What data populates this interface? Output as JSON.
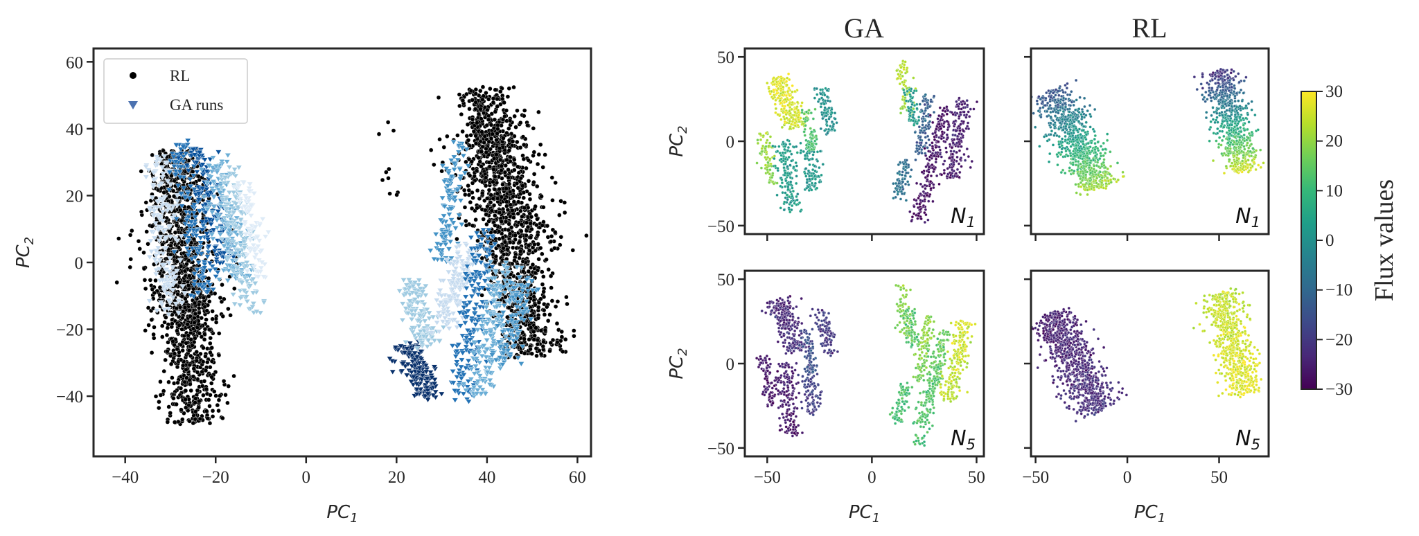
{
  "chart_data": [
    {
      "id": "main",
      "type": "scatter",
      "xlabel": "PC",
      "xlabel_sub": "1",
      "ylabel": "PC",
      "ylabel_sub": "2",
      "xlim": [
        -47,
        63
      ],
      "ylim": [
        -58,
        64
      ],
      "xticks": [
        -40,
        -20,
        0,
        20,
        40,
        60
      ],
      "yticks": [
        -40,
        -20,
        0,
        20,
        40,
        60
      ],
      "legend": {
        "position": "top-left",
        "entries": [
          {
            "label": "RL",
            "marker": "circle",
            "color": "#000000"
          },
          {
            "label": "GA runs",
            "marker": "triangle-down",
            "color": "#4c72b0"
          }
        ]
      },
      "series": [
        {
          "name": "RL",
          "marker": "circle",
          "color": "#000000",
          "clusters": [
            {
              "from": [
                -29,
                34
              ],
              "to": [
                -25,
                -48
              ],
              "width": 6,
              "n": 1100
            },
            {
              "from": [
                -30,
                20
              ],
              "to": [
                -26,
                -20
              ],
              "width": 10,
              "n": 250
            },
            {
              "from": [
                39,
                52
              ],
              "to": [
                50,
                -28
              ],
              "width": 7,
              "n": 1200
            },
            {
              "from": [
                40,
                40
              ],
              "to": [
                50,
                0
              ],
              "width": 12,
              "n": 250
            },
            {
              "from": [
                17,
                45
              ],
              "to": [
                20,
                20
              ],
              "width": 3,
              "n": 10
            }
          ]
        },
        {
          "name": "GA runs",
          "marker": "triangle-down",
          "clusters": [
            {
              "from": [
                -33,
                32
              ],
              "to": [
                -30,
                -15
              ],
              "width": 3,
              "n": 160,
              "color": "#c6dbef"
            },
            {
              "from": [
                -28,
                36
              ],
              "to": [
                -22,
                -10
              ],
              "width": 3,
              "n": 160,
              "color": "#2171b5"
            },
            {
              "from": [
                -24,
                34
              ],
              "to": [
                -18,
                0
              ],
              "width": 3,
              "n": 150,
              "color": "#08519c"
            },
            {
              "from": [
                -20,
                32
              ],
              "to": [
                -15,
                -5
              ],
              "width": 3,
              "n": 150,
              "color": "#6baed6"
            },
            {
              "from": [
                -17,
                28
              ],
              "to": [
                -12,
                -15
              ],
              "width": 3,
              "n": 140,
              "color": "#9ecae1"
            },
            {
              "from": [
                -14,
                25
              ],
              "to": [
                -10,
                -5
              ],
              "width": 2,
              "n": 80,
              "color": "#deebf7"
            },
            {
              "from": [
                22,
                -25
              ],
              "to": [
                28,
                -40
              ],
              "width": 3,
              "n": 180,
              "color": "#08306b"
            },
            {
              "from": [
                23,
                -5
              ],
              "to": [
                27,
                -25
              ],
              "width": 3,
              "n": 150,
              "color": "#9ecae1"
            },
            {
              "from": [
                34,
                35
              ],
              "to": [
                30,
                0
              ],
              "width": 2,
              "n": 120,
              "color": "#4292c6"
            },
            {
              "from": [
                36,
                5
              ],
              "to": [
                30,
                -20
              ],
              "width": 3,
              "n": 150,
              "color": "#c6dbef"
            },
            {
              "from": [
                40,
                10
              ],
              "to": [
                34,
                -42
              ],
              "width": 3,
              "n": 200,
              "color": "#2171b5"
            },
            {
              "from": [
                44,
                0
              ],
              "to": [
                38,
                -40
              ],
              "width": 3,
              "n": 180,
              "color": "#6baed6"
            },
            {
              "from": [
                48,
                -5
              ],
              "to": [
                44,
                -30
              ],
              "width": 3,
              "n": 120,
              "color": "#4292c6"
            }
          ]
        }
      ]
    },
    {
      "id": "ga-n1",
      "type": "scatter",
      "title": "GA",
      "panel_label": "N",
      "panel_sub": "1",
      "ylabel": "PC",
      "ylabel_sub": "2",
      "xlim": [
        -60.7,
        53.5
      ],
      "ylim": [
        -55,
        55
      ],
      "xticks": [
        -50,
        0,
        50
      ],
      "yticks": [
        -50,
        0,
        50
      ],
      "show_xticklabels": false,
      "show_yticklabels": true,
      "color_by": "Flux values",
      "clusters": [
        {
          "from": [
            -45,
            38
          ],
          "to": [
            -35,
            8
          ],
          "width": 6,
          "n": 260,
          "v": [
            28,
            25
          ]
        },
        {
          "from": [
            -52,
            5
          ],
          "to": [
            -48,
            -25
          ],
          "width": 3,
          "n": 80,
          "v": [
            22,
            18
          ]
        },
        {
          "from": [
            -42,
            0
          ],
          "to": [
            -38,
            -42
          ],
          "width": 5,
          "n": 160,
          "v": [
            3,
            2
          ]
        },
        {
          "from": [
            -30,
            0
          ],
          "to": [
            -28,
            -30
          ],
          "width": 4,
          "n": 100,
          "v": [
            2,
            1
          ]
        },
        {
          "from": [
            -24,
            32
          ],
          "to": [
            -20,
            5
          ],
          "width": 4,
          "n": 90,
          "v": [
            0,
            0
          ]
        },
        {
          "from": [
            -32,
            20
          ],
          "to": [
            -28,
            -5
          ],
          "width": 3,
          "n": 70,
          "v": [
            14,
            12
          ]
        },
        {
          "from": [
            14,
            47
          ],
          "to": [
            17,
            15
          ],
          "width": 3,
          "n": 70,
          "v": [
            24,
            20
          ]
        },
        {
          "from": [
            18,
            32
          ],
          "to": [
            20,
            10
          ],
          "width": 3,
          "n": 60,
          "v": [
            2,
            2
          ]
        },
        {
          "from": [
            27,
            28
          ],
          "to": [
            22,
            -10
          ],
          "width": 3,
          "n": 110,
          "v": [
            -12,
            -13
          ]
        },
        {
          "from": [
            16,
            -12
          ],
          "to": [
            12,
            -35
          ],
          "width": 3,
          "n": 80,
          "v": [
            -8,
            -8
          ]
        },
        {
          "from": [
            35,
            20
          ],
          "to": [
            22,
            -48
          ],
          "width": 4,
          "n": 220,
          "v": [
            -27,
            -28
          ]
        },
        {
          "from": [
            44,
            25
          ],
          "to": [
            37,
            -22
          ],
          "width": 5,
          "n": 200,
          "v": [
            -25,
            -26
          ]
        }
      ]
    },
    {
      "id": "rl-n1",
      "type": "scatter",
      "title": "RL",
      "panel_label": "N",
      "panel_sub": "1",
      "xlim": [
        -52.5,
        77
      ],
      "ylim": [
        -55,
        55
      ],
      "xticks": [
        -50,
        0,
        50
      ],
      "yticks": [
        -50,
        0,
        50
      ],
      "show_xticklabels": false,
      "show_yticklabels": false,
      "color_by": "Flux values",
      "clusters": [
        {
          "from": [
            -42,
            30
          ],
          "to": [
            -15,
            -28
          ],
          "width": 12,
          "n": 900,
          "v": [
            -15,
            22
          ]
        },
        {
          "from": [
            50,
            42
          ],
          "to": [
            64,
            -18
          ],
          "width": 10,
          "n": 700,
          "v": [
            -22,
            27
          ]
        }
      ]
    },
    {
      "id": "ga-n5",
      "type": "scatter",
      "panel_label": "N",
      "panel_sub": "5",
      "xlabel": "PC",
      "xlabel_sub": "1",
      "ylabel": "PC",
      "ylabel_sub": "2",
      "xlim": [
        -60.7,
        53.5
      ],
      "ylim": [
        -55,
        55
      ],
      "xticks": [
        -50,
        0,
        50
      ],
      "yticks": [
        -50,
        0,
        50
      ],
      "show_xticklabels": true,
      "show_yticklabels": true,
      "color_by": "Flux values",
      "clusters": [
        {
          "from": [
            -45,
            38
          ],
          "to": [
            -35,
            8
          ],
          "width": 6,
          "n": 260,
          "v": [
            -24,
            -22
          ]
        },
        {
          "from": [
            -52,
            5
          ],
          "to": [
            -48,
            -25
          ],
          "width": 3,
          "n": 80,
          "v": [
            -26,
            -26
          ]
        },
        {
          "from": [
            -42,
            0
          ],
          "to": [
            -38,
            -42
          ],
          "width": 5,
          "n": 160,
          "v": [
            -25,
            -27
          ]
        },
        {
          "from": [
            -30,
            0
          ],
          "to": [
            -28,
            -30
          ],
          "width": 4,
          "n": 100,
          "v": [
            -18,
            -20
          ]
        },
        {
          "from": [
            -24,
            32
          ],
          "to": [
            -20,
            5
          ],
          "width": 4,
          "n": 90,
          "v": [
            -20,
            -20
          ]
        },
        {
          "from": [
            -32,
            20
          ],
          "to": [
            -28,
            -5
          ],
          "width": 3,
          "n": 70,
          "v": [
            -15,
            -15
          ]
        },
        {
          "from": [
            14,
            47
          ],
          "to": [
            17,
            15
          ],
          "width": 3,
          "n": 70,
          "v": [
            20,
            18
          ]
        },
        {
          "from": [
            18,
            32
          ],
          "to": [
            20,
            10
          ],
          "width": 3,
          "n": 60,
          "v": [
            14,
            14
          ]
        },
        {
          "from": [
            27,
            28
          ],
          "to": [
            22,
            -10
          ],
          "width": 3,
          "n": 110,
          "v": [
            20,
            18
          ]
        },
        {
          "from": [
            16,
            -12
          ],
          "to": [
            12,
            -35
          ],
          "width": 3,
          "n": 80,
          "v": [
            13,
            12
          ]
        },
        {
          "from": [
            35,
            20
          ],
          "to": [
            22,
            -48
          ],
          "width": 4,
          "n": 220,
          "v": [
            16,
            12
          ]
        },
        {
          "from": [
            44,
            25
          ],
          "to": [
            37,
            -22
          ],
          "width": 5,
          "n": 200,
          "v": [
            26,
            24
          ]
        }
      ]
    },
    {
      "id": "rl-n5",
      "type": "scatter",
      "panel_label": "N",
      "panel_sub": "5",
      "xlabel": "PC",
      "xlabel_sub": "1",
      "xlim": [
        -52.5,
        77
      ],
      "ylim": [
        -55,
        55
      ],
      "xticks": [
        -50,
        0,
        50
      ],
      "yticks": [
        -50,
        0,
        50
      ],
      "show_xticklabels": true,
      "show_yticklabels": false,
      "color_by": "Flux values",
      "clusters": [
        {
          "from": [
            -42,
            30
          ],
          "to": [
            -15,
            -28
          ],
          "width": 12,
          "n": 900,
          "v": [
            -25,
            -22
          ]
        },
        {
          "from": [
            50,
            42
          ],
          "to": [
            64,
            -18
          ],
          "width": 10,
          "n": 700,
          "v": [
            24,
            28
          ]
        }
      ]
    }
  ],
  "colorbar": {
    "label": "Flux values",
    "range": [
      -30,
      30
    ],
    "ticks": [
      -30,
      -20,
      -10,
      0,
      10,
      20,
      30
    ],
    "colormap": "viridis",
    "stops": [
      "#440154",
      "#482878",
      "#3e4989",
      "#31688e",
      "#26828e",
      "#1f9e89",
      "#35b779",
      "#6ece58",
      "#b5de2b",
      "#fde725"
    ]
  }
}
